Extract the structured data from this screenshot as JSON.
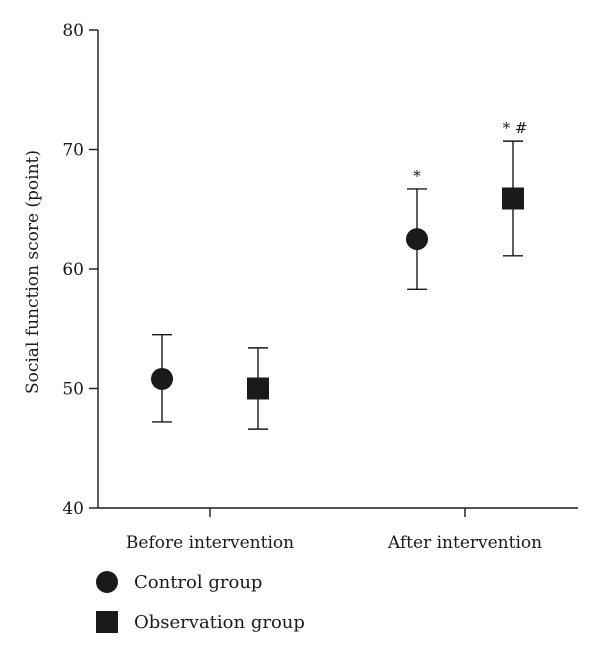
{
  "chart_data": {
    "type": "scatter",
    "title": "",
    "xlabel": "",
    "ylabel": "Social function score (point)",
    "ylim": [
      40,
      80
    ],
    "yticks": [
      40,
      50,
      60,
      70,
      80
    ],
    "categories": [
      "Before intervention",
      "After intervention"
    ],
    "grid": false,
    "legend_position": "bottom-left",
    "series": [
      {
        "name": "Control group",
        "marker": "circle",
        "color": "#1a1a1a",
        "values": [
          50.8,
          62.5
        ],
        "error_low": [
          47.2,
          58.3
        ],
        "error_high": [
          54.5,
          66.7
        ],
        "annotations": [
          "",
          "*"
        ]
      },
      {
        "name": "Observation group",
        "marker": "square",
        "color": "#1a1a1a",
        "values": [
          50.0,
          65.9
        ],
        "error_low": [
          46.6,
          61.1
        ],
        "error_high": [
          53.4,
          70.7
        ],
        "annotations": [
          "",
          "* #"
        ]
      }
    ]
  }
}
